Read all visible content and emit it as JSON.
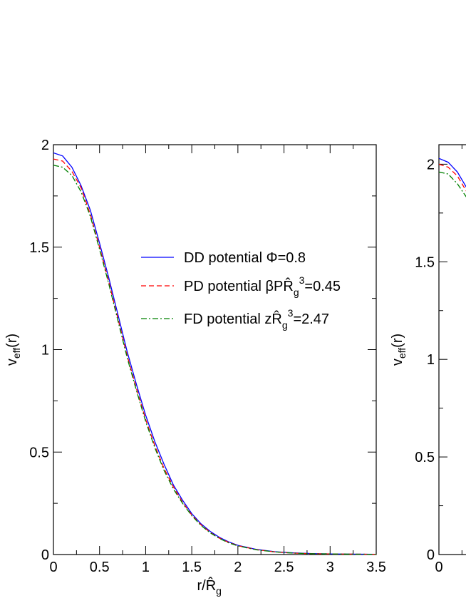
{
  "chart_data": [
    {
      "type": "line",
      "title": "",
      "xlabel": {
        "main": "r/",
        "symbol": "R̂",
        "sub": "g"
      },
      "ylabel": {
        "main": "v",
        "sub": "eff",
        "tail": "(r)"
      },
      "xlim": [
        0,
        3.5
      ],
      "ylim": [
        0,
        2
      ],
      "x_ticks": [
        0,
        0.5,
        1,
        1.5,
        2,
        2.5,
        3,
        3.5
      ],
      "x_tick_labels": [
        "0",
        "0.5",
        "1",
        "1.5",
        "2",
        "2.5",
        "3",
        "3.5"
      ],
      "y_ticks": [
        0,
        0.5,
        1,
        1.5,
        2
      ],
      "y_tick_labels": [
        "0",
        "0.5",
        "1",
        "1.5",
        "2"
      ],
      "legend_position": "center-right",
      "grid": false,
      "x": [
        0,
        0.1,
        0.2,
        0.3,
        0.4,
        0.5,
        0.6,
        0.7,
        0.8,
        0.9,
        1.0,
        1.1,
        1.2,
        1.3,
        1.4,
        1.5,
        1.6,
        1.7,
        1.8,
        1.9,
        2.0,
        2.2,
        2.4,
        2.6,
        2.8,
        3.0,
        3.2,
        3.5
      ],
      "series": [
        {
          "legend_parts": [
            "DD potential Φ=0.8"
          ],
          "color": "#0000ff",
          "dash": "solid",
          "values": [
            1.96,
            1.945,
            1.89,
            1.8,
            1.68,
            1.52,
            1.35,
            1.17,
            0.99,
            0.83,
            0.68,
            0.55,
            0.44,
            0.34,
            0.265,
            0.2,
            0.15,
            0.113,
            0.084,
            0.062,
            0.045,
            0.025,
            0.014,
            0.008,
            0.005,
            0.003,
            0.002,
            0.001
          ]
        },
        {
          "legend_parts": [
            "PD potential βPR̂",
            "g",
            "3",
            "=0.45"
          ],
          "color": "#ff0000",
          "dash": "dashed",
          "values": [
            1.93,
            1.92,
            1.87,
            1.79,
            1.66,
            1.5,
            1.33,
            1.15,
            0.97,
            0.81,
            0.66,
            0.53,
            0.42,
            0.33,
            0.255,
            0.193,
            0.145,
            0.108,
            0.08,
            0.059,
            0.043,
            0.024,
            0.013,
            0.007,
            0.004,
            0.003,
            0.002,
            0.001
          ]
        },
        {
          "legend_parts": [
            "FD potential zR̂",
            "g",
            "3",
            "=2.47"
          ],
          "color": "#008000",
          "dash": "dashdot",
          "values": [
            1.9,
            1.89,
            1.85,
            1.77,
            1.65,
            1.49,
            1.32,
            1.14,
            0.96,
            0.8,
            0.65,
            0.52,
            0.41,
            0.32,
            0.25,
            0.19,
            0.142,
            0.106,
            0.078,
            0.057,
            0.042,
            0.023,
            0.013,
            0.007,
            0.004,
            0.003,
            0.002,
            0.001
          ]
        }
      ]
    },
    {
      "type": "line",
      "title": "",
      "ylabel": {
        "main": "v",
        "sub": "eff",
        "tail": "(r)"
      },
      "xlim": [
        0,
        3.5
      ],
      "ylim": [
        0,
        2.1
      ],
      "x_ticks": [
        0
      ],
      "x_tick_labels": [
        "0"
      ],
      "y_ticks": [
        0,
        0.5,
        1,
        1.5,
        2
      ],
      "y_tick_labels": [
        "0",
        "0.5",
        "1",
        "1.5",
        "2"
      ],
      "x": [
        0,
        0.1,
        0.2,
        0.3
      ],
      "series": [
        {
          "color": "#0000ff",
          "dash": "solid",
          "values": [
            2.03,
            2.01,
            1.96,
            1.88
          ]
        },
        {
          "color": "#ff0000",
          "dash": "dashed",
          "values": [
            2.0,
            1.985,
            1.94,
            1.86
          ]
        },
        {
          "color": "#008000",
          "dash": "dashdot",
          "values": [
            1.96,
            1.95,
            1.9,
            1.83
          ]
        }
      ]
    }
  ]
}
